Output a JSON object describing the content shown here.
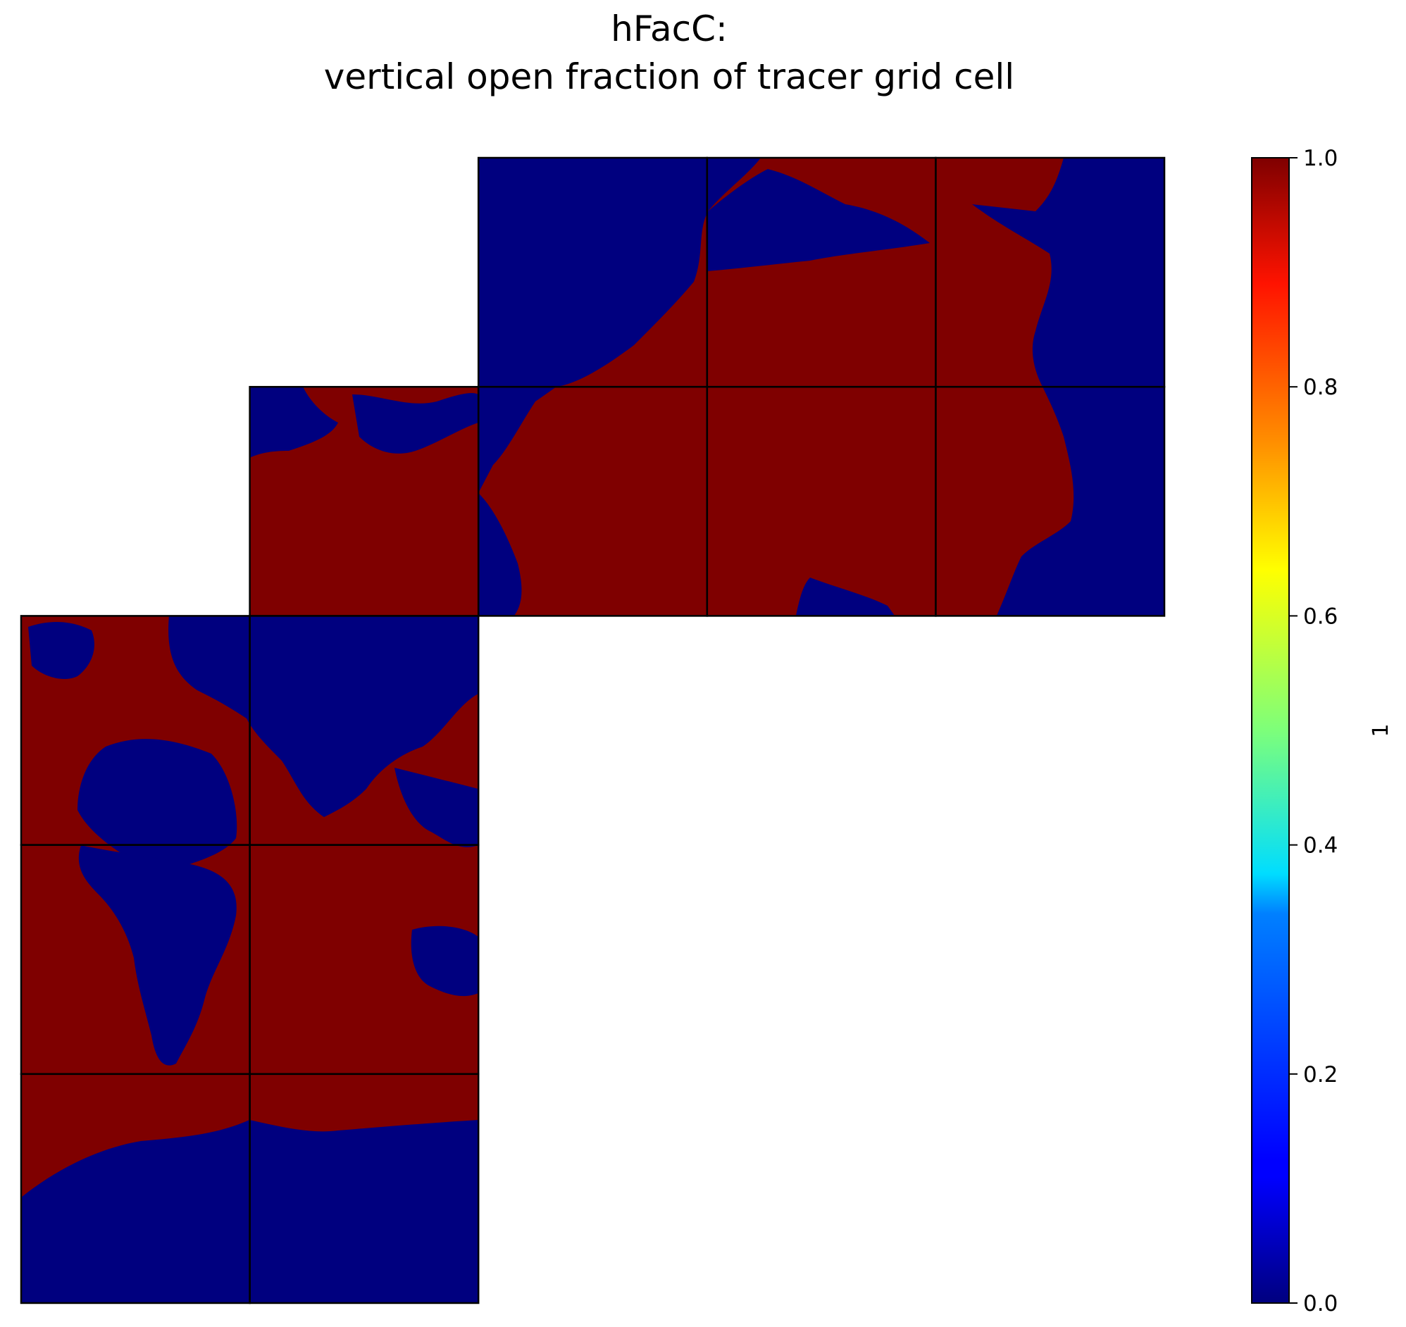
{
  "chart_data": {
    "type": "heatmap",
    "title": "hFacC:",
    "subtitle": "vertical open fraction of tracer grid cell",
    "colorbar": {
      "label": "1",
      "vmin": 0.0,
      "vmax": 1.0,
      "colormap": "jet",
      "ticks": [
        "0.0",
        "0.2",
        "0.4",
        "0.6",
        "0.8",
        "1.0"
      ],
      "tick_values": [
        0.0,
        0.2,
        0.4,
        0.6,
        0.8,
        1.0
      ]
    },
    "colors": {
      "land": "#00007f",
      "ocean": "#7f0000",
      "grid_lines": "#000000"
    },
    "value_legend": {
      "land_value": 0.0,
      "ocean_value": 1.0
    },
    "layout_description": "13-tile LLC grid mosaic: faces of 3x3 tiles arranged in a staircase",
    "tile_grid": {
      "columns": 5,
      "rows": 5,
      "tiles": [
        {
          "row": 0,
          "col": 2
        },
        {
          "row": 0,
          "col": 3
        },
        {
          "row": 0,
          "col": 4
        },
        {
          "row": 1,
          "col": 1
        },
        {
          "row": 1,
          "col": 2
        },
        {
          "row": 1,
          "col": 3
        },
        {
          "row": 1,
          "col": 4
        },
        {
          "row": 2,
          "col": 0
        },
        {
          "row": 2,
          "col": 1
        },
        {
          "row": 3,
          "col": 0
        },
        {
          "row": 3,
          "col": 1
        },
        {
          "row": 4,
          "col": 0
        },
        {
          "row": 4,
          "col": 1
        }
      ]
    }
  }
}
